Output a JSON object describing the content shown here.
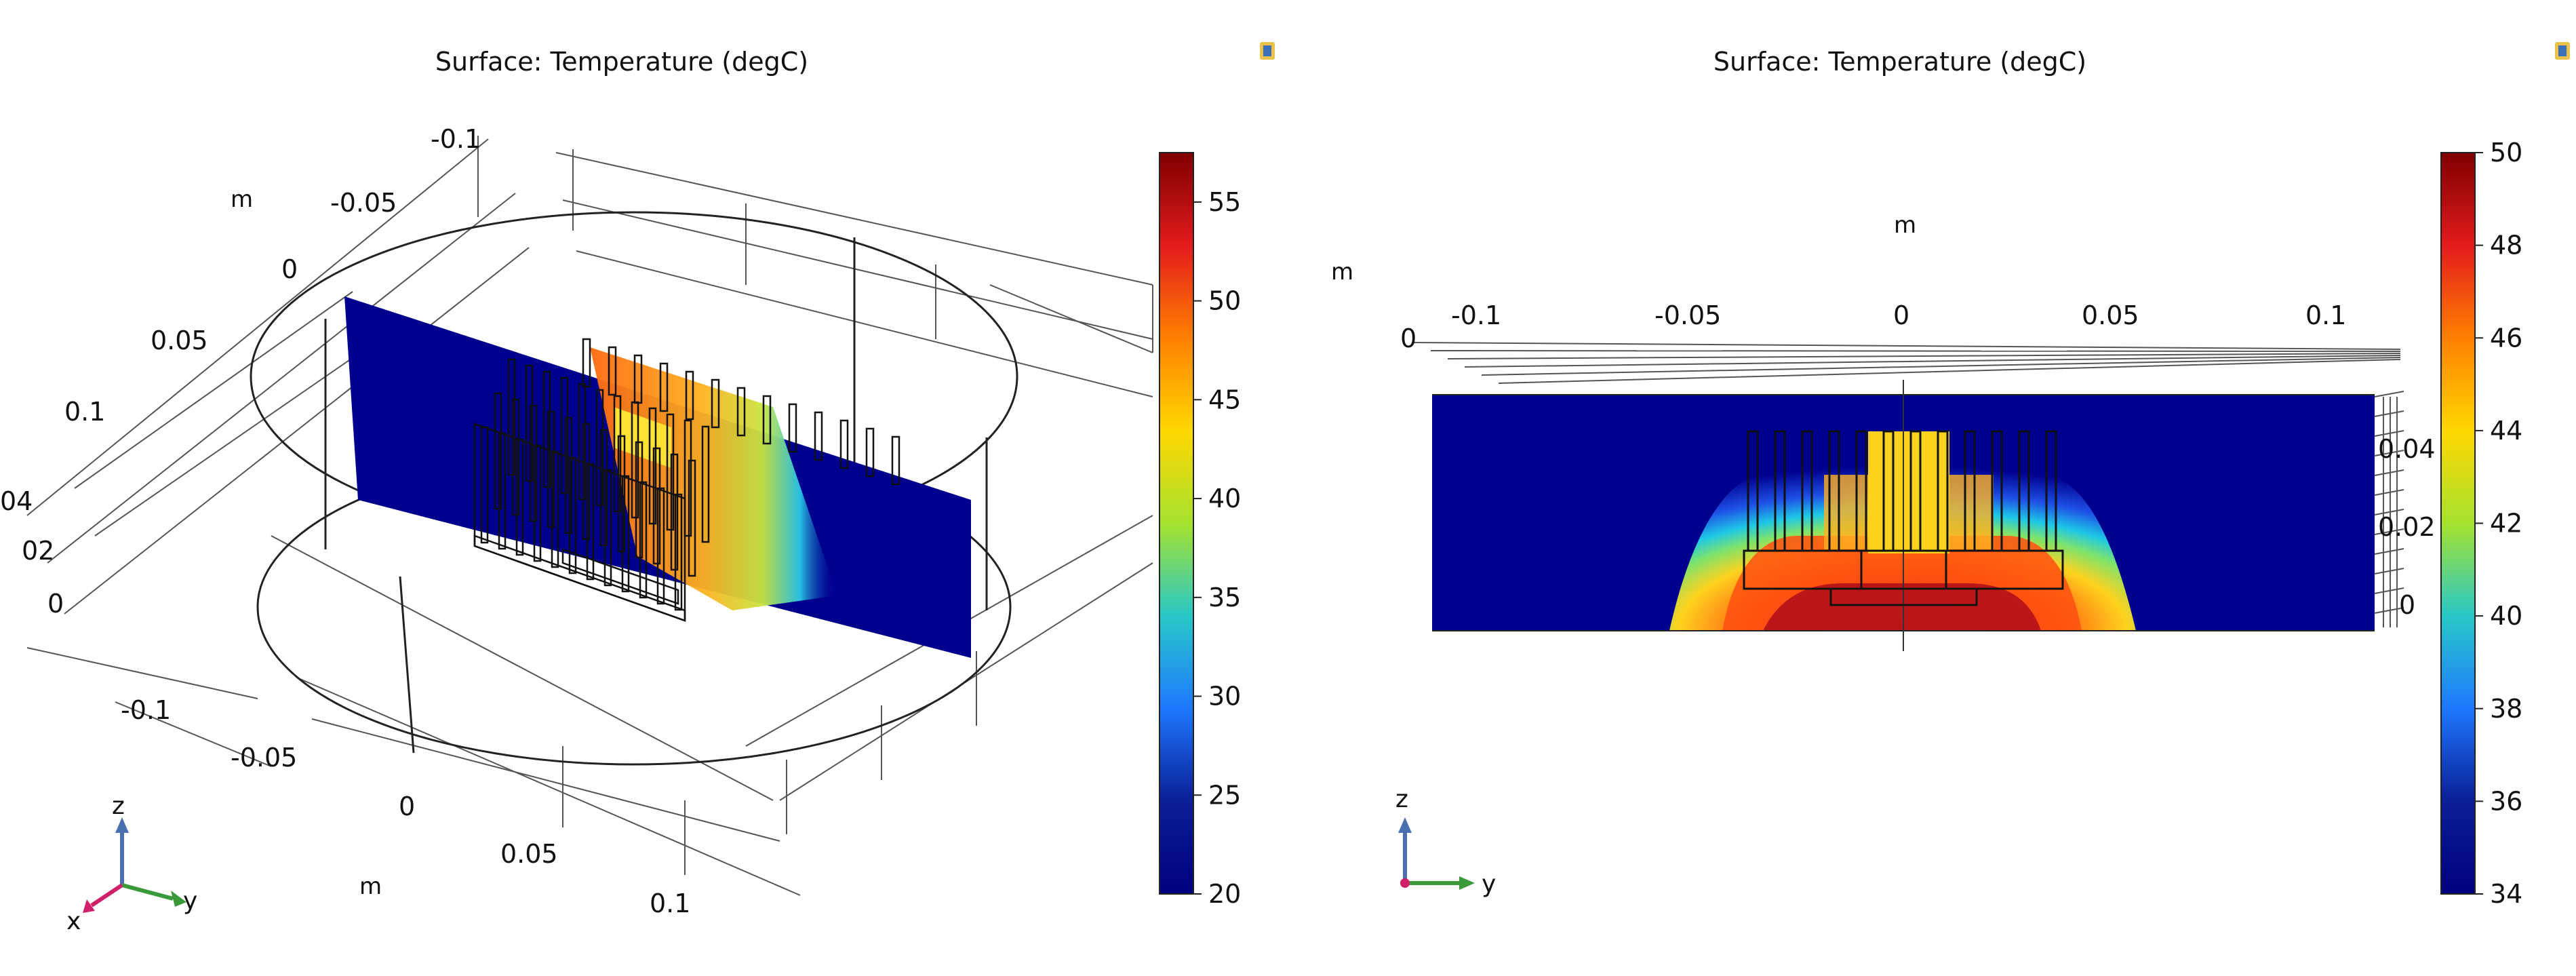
{
  "chart_data": [
    {
      "type": "heatmap",
      "view": "3D",
      "title": "Surface: Temperature (degC)",
      "unit_labels": [
        "m",
        "m"
      ],
      "axis_ticks": {
        "back_x": [
          "-0.1",
          "-0.05",
          "0",
          "0.05",
          "0.1"
        ],
        "z": [
          "04",
          "02",
          "0"
        ],
        "front_y": [
          "-0.1",
          "-0.05",
          "0",
          "0.05",
          "0.1"
        ]
      },
      "colorbar": {
        "min": 20,
        "max": 57.5,
        "ticks": [
          55,
          50,
          45,
          40,
          35,
          30,
          25,
          20
        ],
        "colors": [
          "#7f0000",
          "#e41a1c",
          "#ff8000",
          "#ffd700",
          "#a6e22e",
          "#28c8c8",
          "#1e78ff",
          "#0a1e96",
          "#00007f"
        ]
      },
      "triad": {
        "z": "z",
        "y": "y",
        "x": "x"
      }
    },
    {
      "type": "heatmap",
      "view": "2D (y-z plane)",
      "title": "Surface: Temperature (degC)",
      "unit_labels": [
        "m",
        "m"
      ],
      "axis_ticks": {
        "top": [
          "-0.1",
          "-0.05",
          "0",
          "0.05",
          "0.1"
        ],
        "top_z": [
          "0"
        ],
        "right_z": [
          "0.04",
          "0.02",
          "0"
        ]
      },
      "colorbar": {
        "min": 34,
        "max": 50,
        "ticks": [
          50,
          48,
          46,
          44,
          42,
          40,
          38,
          36,
          34
        ],
        "colors": [
          "#7f0000",
          "#e41a1c",
          "#ff8000",
          "#ffd700",
          "#a6e22e",
          "#28c8c8",
          "#1e78ff",
          "#0a1e96",
          "#00007f"
        ]
      },
      "triad": {
        "z": "z",
        "y": "y"
      }
    }
  ],
  "colors": {
    "cold": "#00008f",
    "hot": "#9a0000",
    "frame": "#333333",
    "grid": "#555555"
  }
}
